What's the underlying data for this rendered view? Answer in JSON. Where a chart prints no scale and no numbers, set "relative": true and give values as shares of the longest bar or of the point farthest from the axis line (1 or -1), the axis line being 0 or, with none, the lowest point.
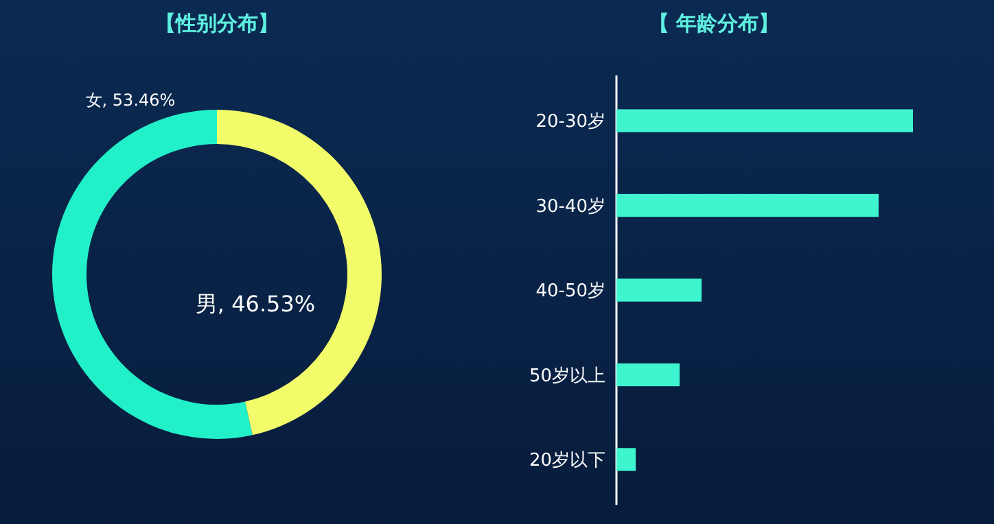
{
  "chart_data": [
    {
      "type": "donut",
      "title": "【性别分布】",
      "categories": [
        "女",
        "男"
      ],
      "values": [
        53.46,
        46.53
      ],
      "colors": [
        "#22f0c8",
        "#f2fb6a"
      ],
      "value_labels": [
        "53.46%",
        "46.53%"
      ]
    },
    {
      "type": "bar",
      "title": "【 年龄分布】",
      "orientation": "horizontal",
      "relative": true,
      "categories": [
        "20-30岁",
        "30-40岁",
        "40-50岁",
        "50岁以上",
        "20岁以下"
      ],
      "values": [
        1,
        0.884,
        0.287,
        0.213,
        0.065
      ],
      "color": "#3ff5d0"
    }
  ]
}
